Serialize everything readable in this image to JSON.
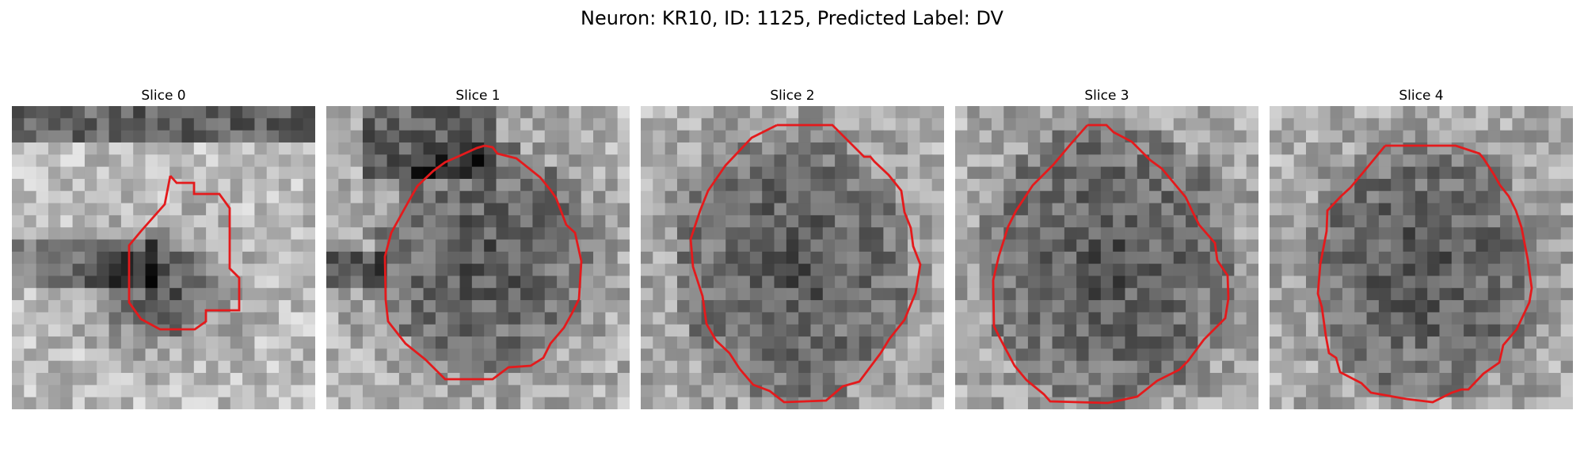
{
  "figure": {
    "title": "Neuron: KR10, ID: 1125, Predicted Label: DV"
  },
  "panels": [
    {
      "title": "Slice 0"
    },
    {
      "title": "Slice 1"
    },
    {
      "title": "Slice 2"
    },
    {
      "title": "Slice 3"
    },
    {
      "title": "Slice 4"
    }
  ],
  "colors": {
    "contour": "#e41a1c",
    "background": "#ffffff"
  },
  "image_style": "grayscale noisy microscopy patch with red contour outline"
}
